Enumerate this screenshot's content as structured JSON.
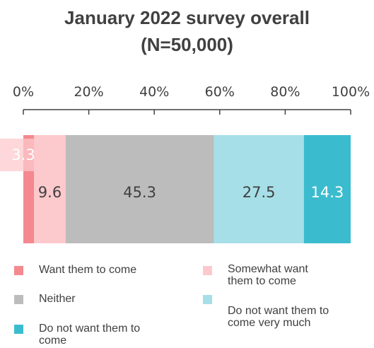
{
  "chart_data": {
    "type": "bar",
    "orientation": "horizontal",
    "stacked": true,
    "title": "January 2022 survey overall",
    "subtitle": "(N=50,000)",
    "xlim": [
      0,
      100
    ],
    "x_ticks": [
      "0%",
      "20%",
      "40%",
      "60%",
      "80%",
      "100%"
    ],
    "legend_position": "bottom",
    "series": [
      {
        "name": "Want them to come",
        "value": 3.3,
        "label": "3.3",
        "color": "#f4898f",
        "label_color": "#ffffff"
      },
      {
        "name": "Somewhat want them to come",
        "value": 9.6,
        "label": "9.6",
        "color": "#fcc9cc",
        "label_color": "#404040"
      },
      {
        "name": "Neither",
        "value": 45.3,
        "label": "45.3",
        "color": "#bdbcbc",
        "label_color": "#404040"
      },
      {
        "name": "Do not want them to come very much",
        "value": 27.5,
        "label": "27.5",
        "color": "#a7dfe8",
        "label_color": "#404040"
      },
      {
        "name": "Do not want them to come",
        "value": 14.3,
        "label": "14.3",
        "color": "#3bbcce",
        "label_color": "#ffffff"
      }
    ]
  },
  "legend": [
    {
      "lines": [
        "Want them to come"
      ],
      "color": "#f4898f"
    },
    {
      "lines": [
        "Somewhat want",
        "them to come"
      ],
      "color": "#fcc9cc"
    },
    {
      "lines": [
        "Neither"
      ],
      "color": "#bdbcbc"
    },
    {
      "lines": [
        "Do not want them to",
        "come very much"
      ],
      "color": "#a7dfe8"
    },
    {
      "lines": [
        "Do not want them to",
        "come"
      ],
      "color": "#3bbcce"
    }
  ]
}
